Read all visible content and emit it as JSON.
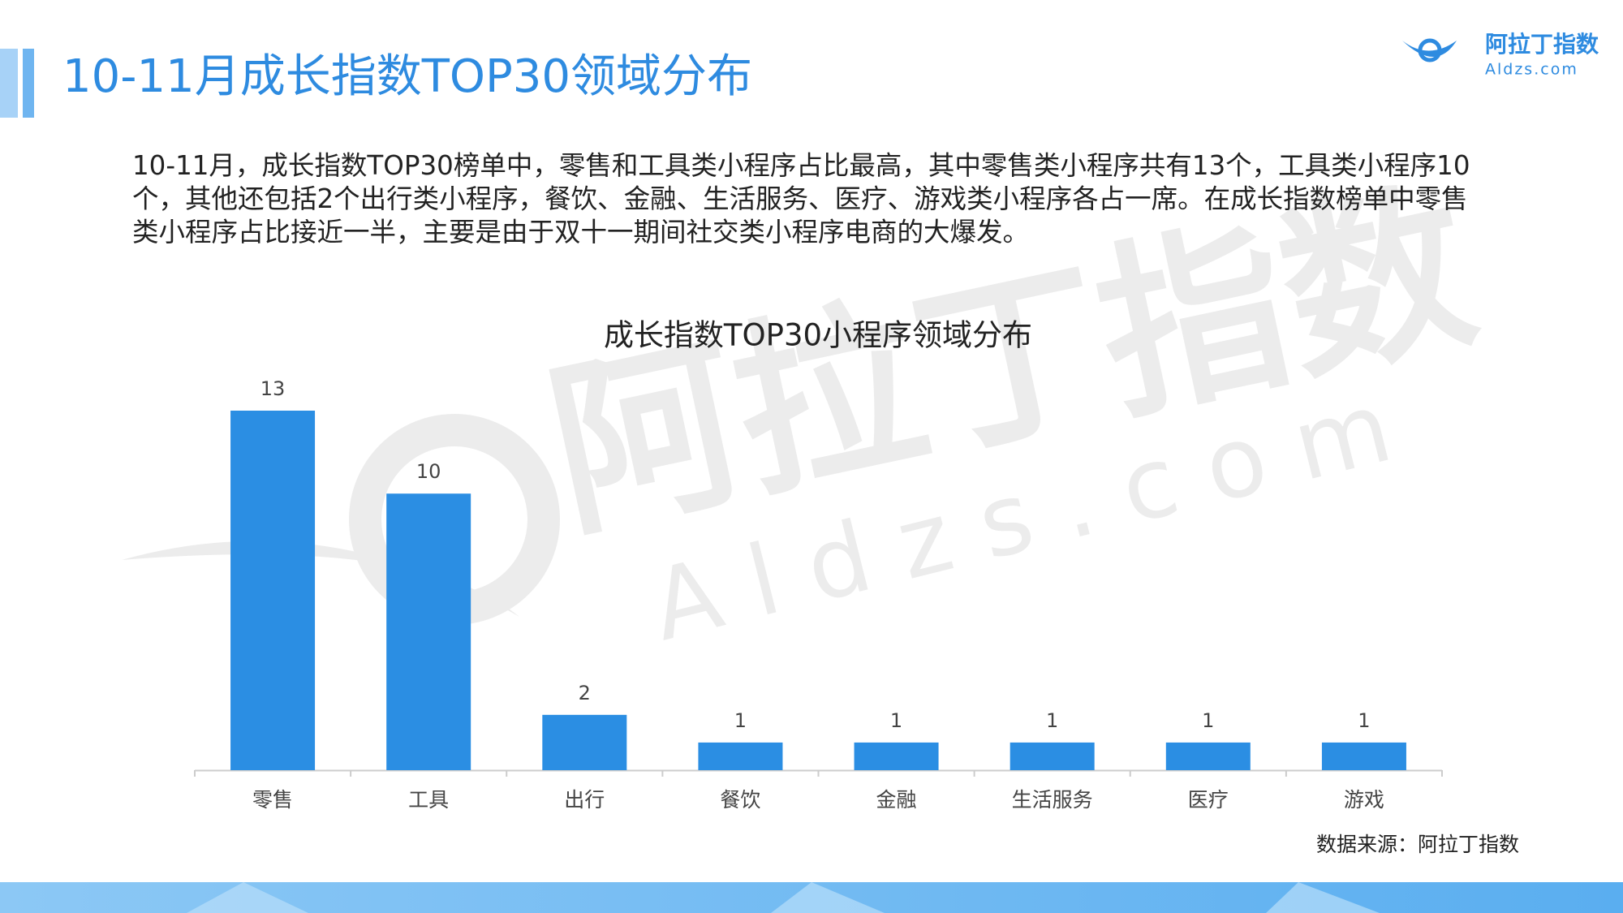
{
  "header": {
    "title": "10-11月成长指数TOP30领域分布"
  },
  "logo": {
    "name": "阿拉丁指数",
    "url": "Aldzs.com"
  },
  "watermark": {
    "name": "阿拉丁指数",
    "url": "Aldzs.com"
  },
  "paragraph": "10-11月，成长指数TOP30榜单中，零售和工具类小程序占比最高，其中零售类小程序共有13个，工具类小程序10个，其他还包括2个出行类小程序，餐饮、金融、生活服务、医疗、游戏类小程序各占一席。在成长指数榜单中零售类小程序占比接近一半，主要是由于双十一期间社交类小程序电商的大爆发。",
  "chart_data": {
    "type": "bar",
    "title": "成长指数TOP30小程序领域分布",
    "categories": [
      "零售",
      "工具",
      "出行",
      "餐饮",
      "金融",
      "生活服务",
      "医疗",
      "游戏"
    ],
    "values": [
      13,
      10,
      2,
      1,
      1,
      1,
      1,
      1
    ],
    "color": "#2b8ee3",
    "source": "数据来源：阿拉丁指数"
  }
}
